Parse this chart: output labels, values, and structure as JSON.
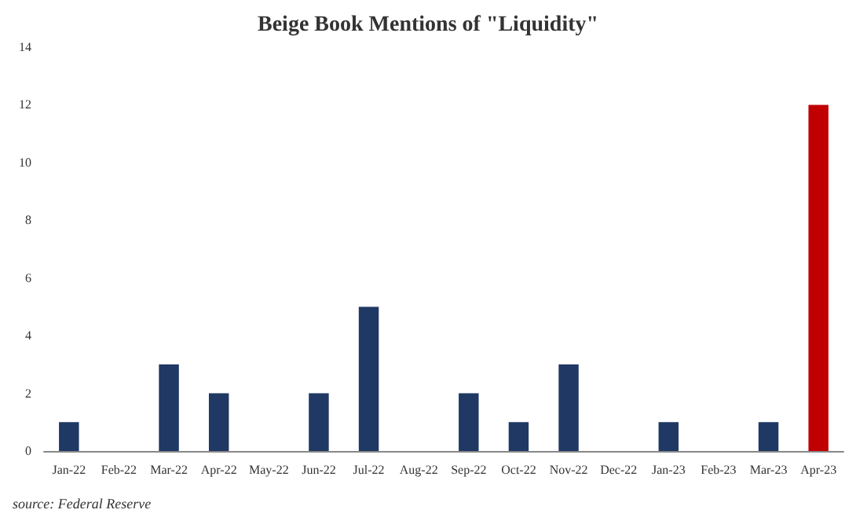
{
  "chart_data": {
    "type": "bar",
    "title": "Beige Book Mentions of \"Liquidity\"",
    "categories": [
      "Jan-22",
      "Feb-22",
      "Mar-22",
      "Apr-22",
      "May-22",
      "Jun-22",
      "Jul-22",
      "Aug-22",
      "Sep-22",
      "Oct-22",
      "Nov-22",
      "Dec-22",
      "Jan-23",
      "Feb-23",
      "Mar-23",
      "Apr-23"
    ],
    "values": [
      1,
      0,
      3,
      2,
      0,
      2,
      5,
      0,
      2,
      1,
      3,
      0,
      1,
      0,
      1,
      12
    ],
    "colors": [
      "#1f3864",
      "#1f3864",
      "#1f3864",
      "#1f3864",
      "#1f3864",
      "#1f3864",
      "#1f3864",
      "#1f3864",
      "#1f3864",
      "#1f3864",
      "#1f3864",
      "#1f3864",
      "#1f3864",
      "#1f3864",
      "#1f3864",
      "#c00000"
    ],
    "ylim": [
      0,
      14
    ],
    "yticks": [
      0,
      2,
      4,
      6,
      8,
      10,
      12,
      14
    ],
    "grid": false,
    "annotations": [
      "source: Federal Reserve"
    ]
  }
}
